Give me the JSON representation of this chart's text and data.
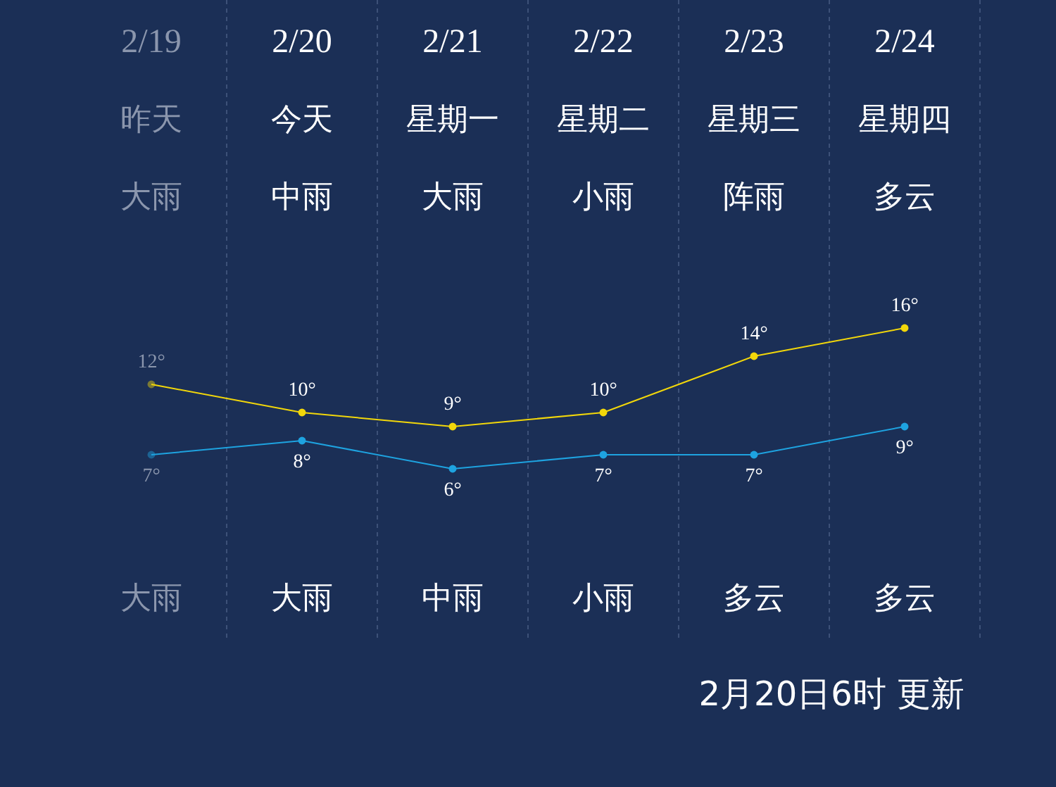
{
  "chart_data": {
    "type": "line",
    "categories": [
      "2/19",
      "2/20",
      "2/21",
      "2/22",
      "2/23",
      "2/24"
    ],
    "series": [
      {
        "color": "#f2d70a",
        "values": [
          12,
          10,
          9,
          10,
          14,
          16
        ],
        "value_labels": [
          "12°",
          "10°",
          "9°",
          "10°",
          "14°",
          "16°"
        ]
      },
      {
        "color": "#1ea3e0",
        "values": [
          7,
          8,
          6,
          7,
          7,
          9
        ],
        "value_labels": [
          "7°",
          "8°",
          "6°",
          "7°",
          "7°",
          "9°"
        ]
      }
    ],
    "annotations": [
      "昨天",
      "今天",
      "星期一",
      "星期二",
      "星期三",
      "星期四",
      "大雨",
      "中雨",
      "大雨",
      "小雨",
      "阵雨",
      "多云",
      "大雨",
      "大雨",
      "中雨",
      "小雨",
      "多云",
      "多云",
      "2月20日6时 更新"
    ],
    "grid": "x",
    "marker": "circle",
    "line_style": "solid"
  }
}
